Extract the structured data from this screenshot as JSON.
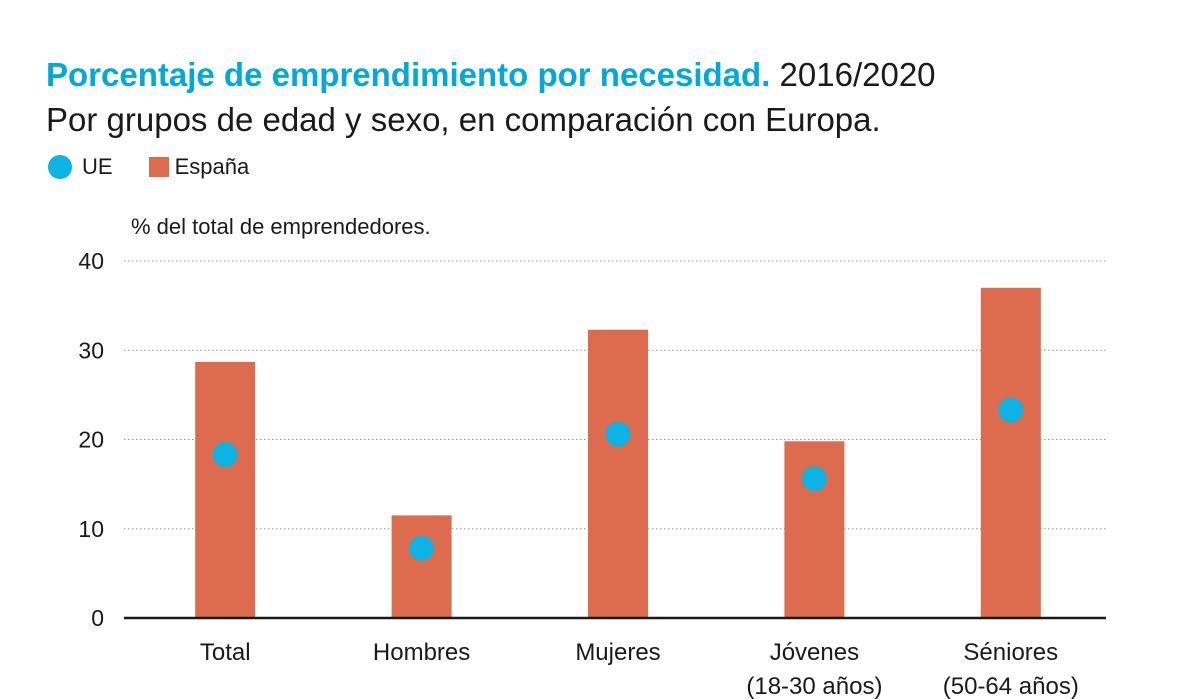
{
  "colors": {
    "title": "#00aad8",
    "ue": "#0cb3e3",
    "espana": "#dd6b4d",
    "grid": "#9a9a9a",
    "axis": "#1a1a1a",
    "text": "#1a1a1a"
  },
  "header": {
    "title": "Porcentaje de emprendimiento por necesidad.",
    "years": "2016/2020",
    "subtitle": "Por grupos de edad y sexo, en comparación con Europa."
  },
  "legend": {
    "ue": "UE",
    "espana": "España"
  },
  "chart_data": {
    "type": "bar",
    "title": "Porcentaje de emprendimiento por necesidad. 2016/2020",
    "subtitle": "Por grupos de edad y sexo, en comparación con Europa.",
    "ylabel": "% del total de emprendedores.",
    "xlabel": "",
    "ylim": [
      0,
      40
    ],
    "yticks": [
      0,
      10,
      20,
      30,
      40
    ],
    "grid": true,
    "legend_position": "top-left",
    "categories": [
      [
        "Total"
      ],
      [
        "Hombres"
      ],
      [
        "Mujeres"
      ],
      [
        "Jóvenes",
        "(18-30 años)"
      ],
      [
        "Séniores",
        "(50-64 años)"
      ]
    ],
    "series": [
      {
        "name": "España",
        "type": "bar",
        "values": [
          28.7,
          11.5,
          32.3,
          19.8,
          37.0
        ]
      },
      {
        "name": "UE",
        "type": "dot",
        "values": [
          18.3,
          7.8,
          20.6,
          15.6,
          23.3
        ]
      }
    ]
  }
}
